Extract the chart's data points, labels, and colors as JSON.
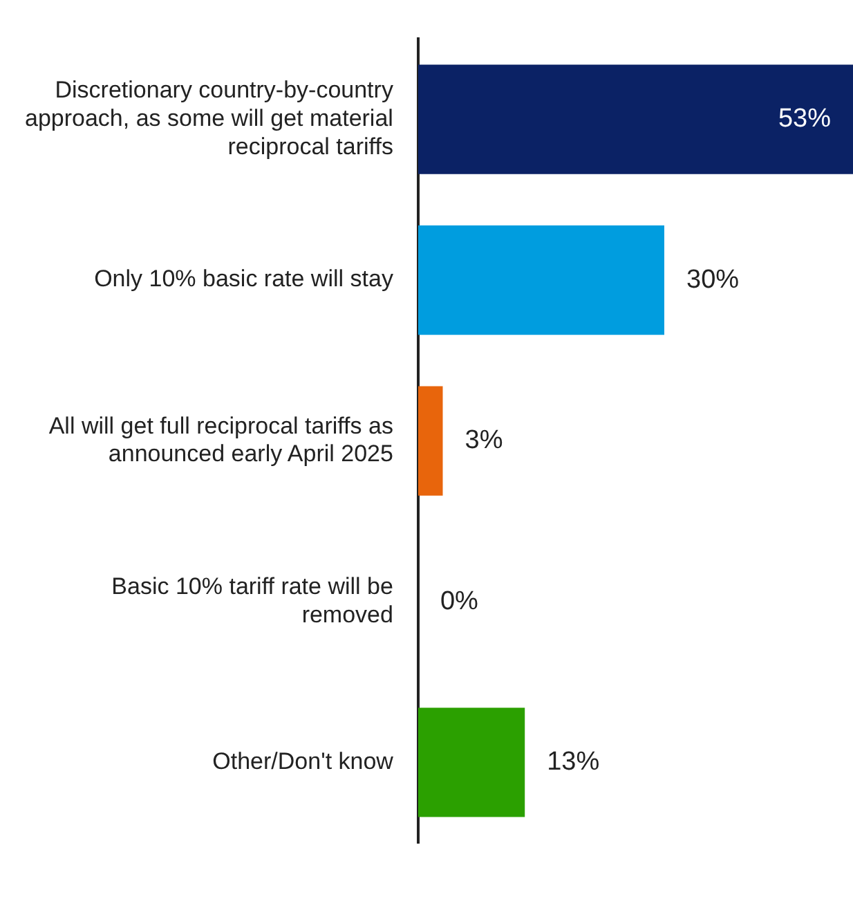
{
  "chart_data": {
    "type": "bar",
    "orientation": "horizontal",
    "grid": false,
    "legend": false,
    "value_labels": [
      "53%",
      "30%",
      "3%",
      "0%",
      "13%"
    ],
    "categories": [
      "Discretionary country-by-country approach, as some will get material reciprocal tariffs",
      "Only 10% basic rate will stay",
      "All will get full reciprocal tariffs as announced early April 2025",
      "Basic 10% tariff rate will be removed",
      "Other/Don't know"
    ],
    "values": [
      53,
      30,
      3,
      0,
      13
    ],
    "colors": [
      "#0b2265",
      "#009ddf",
      "#e8650c",
      "#2ba000",
      "#2ba000"
    ]
  }
}
